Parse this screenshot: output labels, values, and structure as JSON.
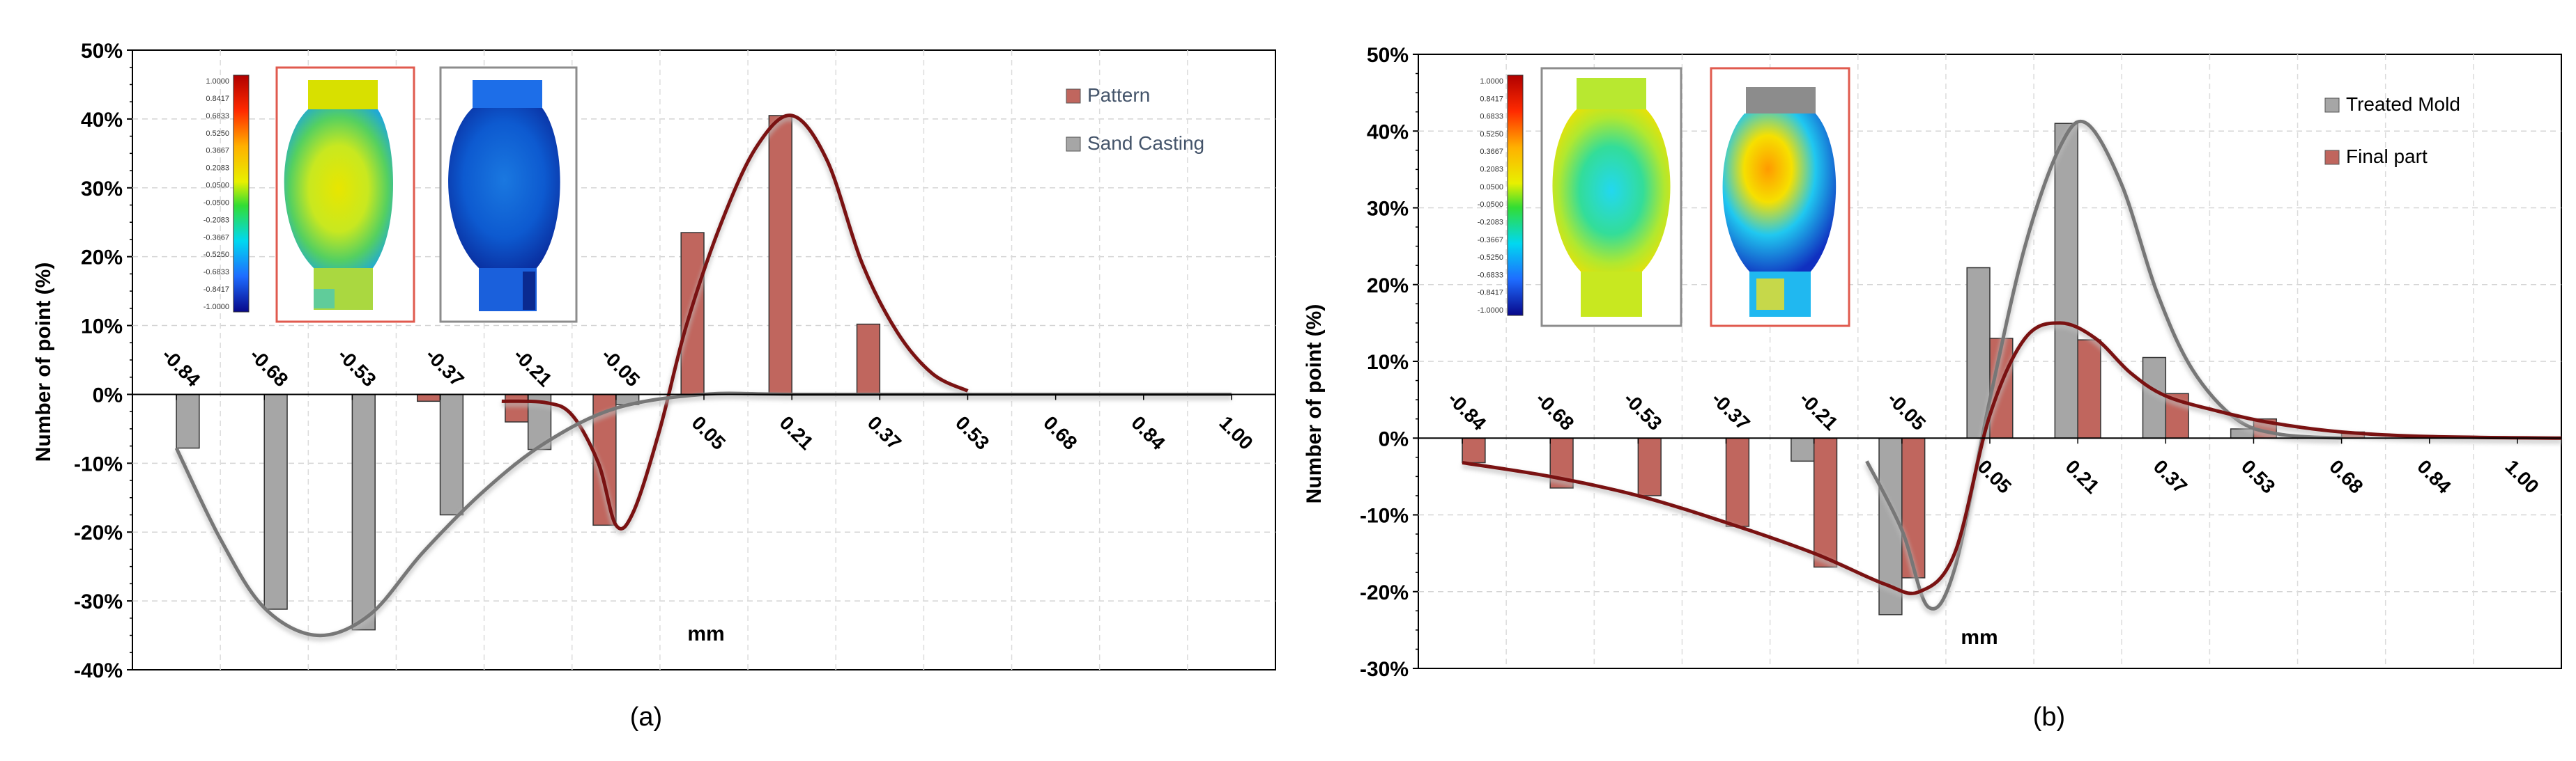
{
  "chart_data": [
    {
      "id": "a",
      "type": "bar",
      "panel_caption": "(a)",
      "xlabel": "mm",
      "ylabel": "Number of point  (%)",
      "ylim": [
        -0.4,
        0.5
      ],
      "ytick_values": [
        -0.4,
        -0.3,
        -0.2,
        -0.1,
        0,
        0.1,
        0.2,
        0.3,
        0.4,
        0.5
      ],
      "ytick_labels": [
        "-40%",
        "-30%",
        "-20%",
        "-10%",
        "0%",
        "10%",
        "20%",
        "30%",
        "40%",
        "50%"
      ],
      "categories": [
        "-0.84",
        "-0.68",
        "-0.53",
        "-0.37",
        "-0.21",
        "-0.05",
        "0.05",
        "0.21",
        "0.37",
        "0.53",
        "0.68",
        "0.84",
        "1.00"
      ],
      "x_range": [
        -0.5,
        12.5
      ],
      "grid": true,
      "legend_position": "top-right",
      "series": [
        {
          "name": "Pattern",
          "color": "#c0665e",
          "line_color": "#7a1212",
          "values": [
            0,
            0,
            0,
            -0.01,
            -0.04,
            -0.19,
            0.235,
            0.405,
            0.102,
            0,
            0,
            0,
            0
          ],
          "curve": [
            [
              3.7,
              -0.01
            ],
            [
              4.2,
              -0.012
            ],
            [
              4.5,
              -0.03
            ],
            [
              4.8,
              -0.1
            ],
            [
              5.0,
              -0.19
            ],
            [
              5.2,
              -0.17
            ],
            [
              5.5,
              -0.05
            ],
            [
              5.8,
              0.1
            ],
            [
              6.2,
              0.25
            ],
            [
              6.6,
              0.36
            ],
            [
              7.0,
              0.405
            ],
            [
              7.4,
              0.34
            ],
            [
              7.8,
              0.19
            ],
            [
              8.2,
              0.09
            ],
            [
              8.6,
              0.03
            ],
            [
              9.0,
              0.005
            ]
          ]
        },
        {
          "name": "Sand Casting",
          "color": "#a6a6a6",
          "line_color": "#777777",
          "values": [
            -0.078,
            -0.312,
            -0.342,
            -0.175,
            -0.08,
            -0.015,
            0,
            0,
            0,
            0,
            0,
            0,
            0
          ],
          "curve": [
            [
              0,
              -0.078
            ],
            [
              0.5,
              -0.21
            ],
            [
              1.0,
              -0.31
            ],
            [
              1.6,
              -0.35
            ],
            [
              2.2,
              -0.32
            ],
            [
              2.8,
              -0.23
            ],
            [
              3.5,
              -0.14
            ],
            [
              4.2,
              -0.07
            ],
            [
              5.0,
              -0.02
            ],
            [
              6.0,
              0.0
            ],
            [
              7.0,
              0.0
            ],
            [
              9.0,
              0.0
            ],
            [
              12.0,
              0.0
            ]
          ]
        }
      ],
      "colorbar_ticks": [
        "1.0000",
        "0.8417",
        "0.6833",
        "0.5250",
        "0.3667",
        "0.2083",
        "0.0500",
        "-0.0500",
        "-0.2083",
        "-0.3667",
        "-0.5250",
        "-0.6833",
        "-0.8417",
        "-1.0000"
      ]
    },
    {
      "id": "b",
      "type": "bar",
      "panel_caption": "(b)",
      "xlabel": "mm",
      "ylabel": "Number of point  (%)",
      "ylim": [
        -0.3,
        0.5
      ],
      "ytick_values": [
        -0.3,
        -0.2,
        -0.1,
        0,
        0.1,
        0.2,
        0.3,
        0.4,
        0.5
      ],
      "ytick_labels": [
        "-30%",
        "-20%",
        "-10%",
        "0%",
        "10%",
        "20%",
        "30%",
        "40%",
        "50%"
      ],
      "categories": [
        "-0.84",
        "-0.68",
        "-0.53",
        "-0.37",
        "-0.21",
        "-0.05",
        "0.05",
        "0.21",
        "0.37",
        "0.53",
        "0.68",
        "0.84",
        "1.00"
      ],
      "x_range": [
        -0.5,
        12.5
      ],
      "grid": true,
      "legend_position": "top-right",
      "series": [
        {
          "name": "Treated Mold",
          "color": "#a6a6a6",
          "line_color": "#777777",
          "values": [
            0,
            0,
            0,
            0,
            -0.03,
            -0.23,
            0.222,
            0.41,
            0.105,
            0.012,
            0,
            0,
            0
          ],
          "curve": [
            [
              4.6,
              -0.03
            ],
            [
              5.0,
              -0.12
            ],
            [
              5.3,
              -0.22
            ],
            [
              5.6,
              -0.17
            ],
            [
              6.0,
              0.05
            ],
            [
              6.4,
              0.25
            ],
            [
              6.8,
              0.38
            ],
            [
              7.1,
              0.41
            ],
            [
              7.5,
              0.33
            ],
            [
              7.9,
              0.19
            ],
            [
              8.3,
              0.09
            ],
            [
              8.8,
              0.025
            ],
            [
              9.3,
              0.005
            ],
            [
              10.0,
              0.0
            ]
          ]
        },
        {
          "name": "Final part",
          "color": "#c0665e",
          "line_color": "#7a1212",
          "values": [
            -0.032,
            -0.065,
            -0.075,
            -0.115,
            -0.168,
            -0.182,
            0.13,
            0.128,
            0.058,
            0.025,
            0.008,
            0,
            0
          ],
          "curve": [
            [
              0,
              -0.032
            ],
            [
              1.0,
              -0.05
            ],
            [
              2.0,
              -0.075
            ],
            [
              3.0,
              -0.11
            ],
            [
              4.0,
              -0.15
            ],
            [
              4.8,
              -0.19
            ],
            [
              5.2,
              -0.2
            ],
            [
              5.6,
              -0.15
            ],
            [
              6.0,
              0.03
            ],
            [
              6.4,
              0.13
            ],
            [
              6.8,
              0.15
            ],
            [
              7.2,
              0.13
            ],
            [
              7.6,
              0.085
            ],
            [
              8.0,
              0.055
            ],
            [
              8.6,
              0.035
            ],
            [
              9.2,
              0.02
            ],
            [
              10.0,
              0.008
            ],
            [
              11.0,
              0.002
            ],
            [
              12.5,
              0.0
            ]
          ]
        }
      ],
      "colorbar_ticks": [
        "1.0000",
        "0.8417",
        "0.6833",
        "0.5250",
        "0.3667",
        "0.2083",
        "0.0500",
        "-0.0500",
        "-0.2083",
        "-0.3667",
        "-0.5250",
        "-0.6833",
        "-0.8417",
        "-1.0000"
      ]
    }
  ]
}
